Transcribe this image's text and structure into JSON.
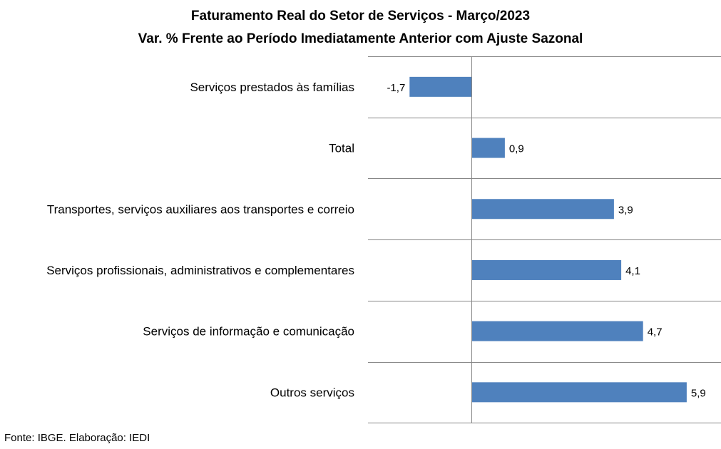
{
  "chart_data": {
    "type": "bar",
    "orientation": "horizontal",
    "title": "Faturamento Real do Setor de Serviços - Março/2023",
    "subtitle": "Var. % Frente ao Período Imediatamente Anterior com Ajuste Sazonal",
    "categories": [
      "Serviços prestados às famílias",
      "Total",
      "Transportes, serviços auxiliares aos transportes e correio",
      "Serviços profissionais, administrativos e complementares",
      "Serviços de informação e comunicação",
      "Outros serviços"
    ],
    "values": [
      -1.7,
      0.9,
      3.9,
      4.1,
      4.7,
      5.9
    ],
    "value_labels": [
      "-1,7",
      "0,9",
      "3,9",
      "4,1",
      "4,7",
      "5,9"
    ],
    "bar_color": "#4F81BD",
    "grid": true
  },
  "source": "Fonte: IBGE. Elaboração: IEDI"
}
